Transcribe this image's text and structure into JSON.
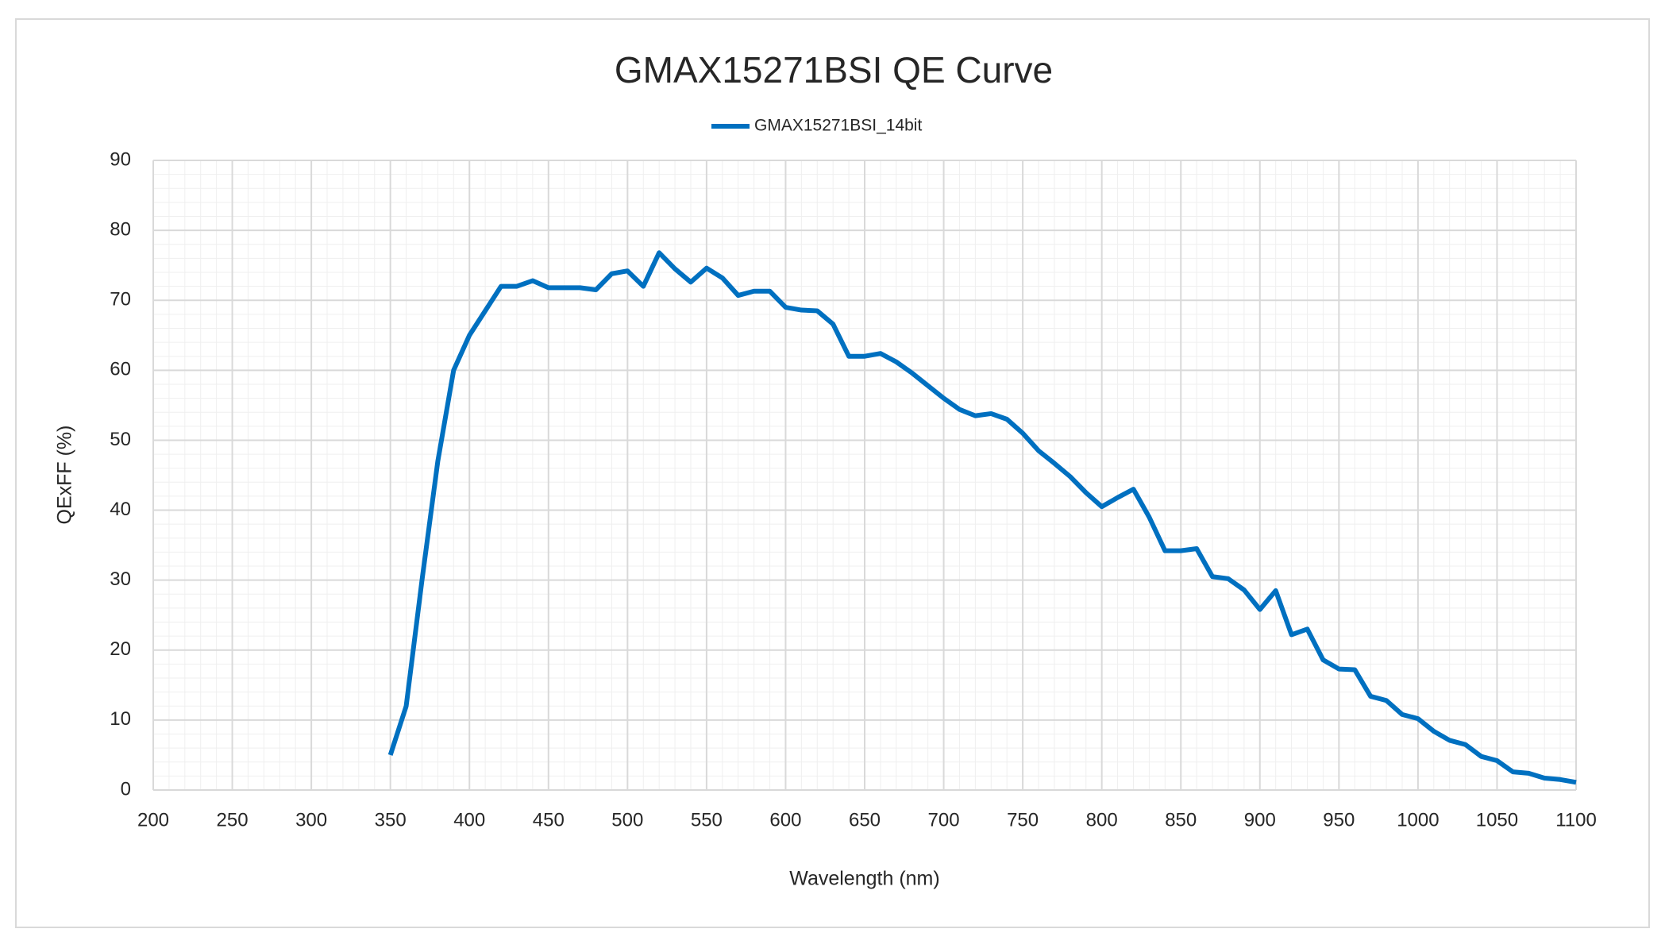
{
  "chart_data": {
    "type": "line",
    "title": "GMAX15271BSI  QE  Curve",
    "x_label": "Wavelength (nm)",
    "y_label": "QExFF (%)",
    "x": [
      350,
      360,
      370,
      380,
      390,
      400,
      410,
      420,
      430,
      440,
      450,
      460,
      470,
      480,
      490,
      500,
      510,
      520,
      530,
      540,
      550,
      560,
      570,
      580,
      590,
      600,
      610,
      620,
      630,
      640,
      650,
      660,
      670,
      680,
      690,
      700,
      710,
      720,
      730,
      740,
      750,
      760,
      770,
      780,
      790,
      800,
      810,
      820,
      830,
      840,
      850,
      860,
      870,
      880,
      890,
      900,
      910,
      920,
      930,
      940,
      950,
      960,
      970,
      980,
      990,
      1000,
      1010,
      1020,
      1030,
      1040,
      1050,
      1060,
      1070,
      1080,
      1090,
      1100
    ],
    "series": [
      {
        "name": "GMAX15271BSI_14bit",
        "color": "#0070c0",
        "values": [
          5,
          12,
          30,
          47,
          60,
          65,
          68.5,
          72,
          72,
          72.8,
          71.8,
          71.8,
          71.8,
          71.5,
          73.8,
          74.2,
          72,
          76.8,
          74.5,
          72.6,
          74.6,
          73.2,
          70.7,
          71.3,
          71.3,
          69,
          68.6,
          68.5,
          66.6,
          62,
          62,
          62.4,
          61.2,
          59.6,
          57.8,
          56,
          54.4,
          53.5,
          53.8,
          53,
          51,
          48.5,
          46.7,
          44.8,
          42.5,
          40.5,
          41.8,
          43,
          39,
          34.2,
          34.2,
          34.5,
          30.5,
          30.2,
          28.6,
          25.8,
          28.5,
          22.2,
          23,
          18.6,
          17.3,
          17.2,
          13.4,
          12.8,
          10.8,
          10.2,
          8.4,
          7.1,
          6.5,
          4.8,
          4.2,
          2.6,
          2.4,
          1.7,
          1.5,
          1.1
        ]
      }
    ],
    "xlim": [
      200,
      1100
    ],
    "xticks": [
      200,
      250,
      300,
      350,
      400,
      450,
      500,
      550,
      600,
      650,
      700,
      750,
      800,
      850,
      900,
      950,
      1000,
      1050,
      1100
    ],
    "ylim": [
      0,
      90
    ],
    "yticks": [
      0,
      10,
      20,
      30,
      40,
      50,
      60,
      70,
      80,
      90
    ],
    "grid": true,
    "minor_grid": true,
    "legend": "top"
  }
}
